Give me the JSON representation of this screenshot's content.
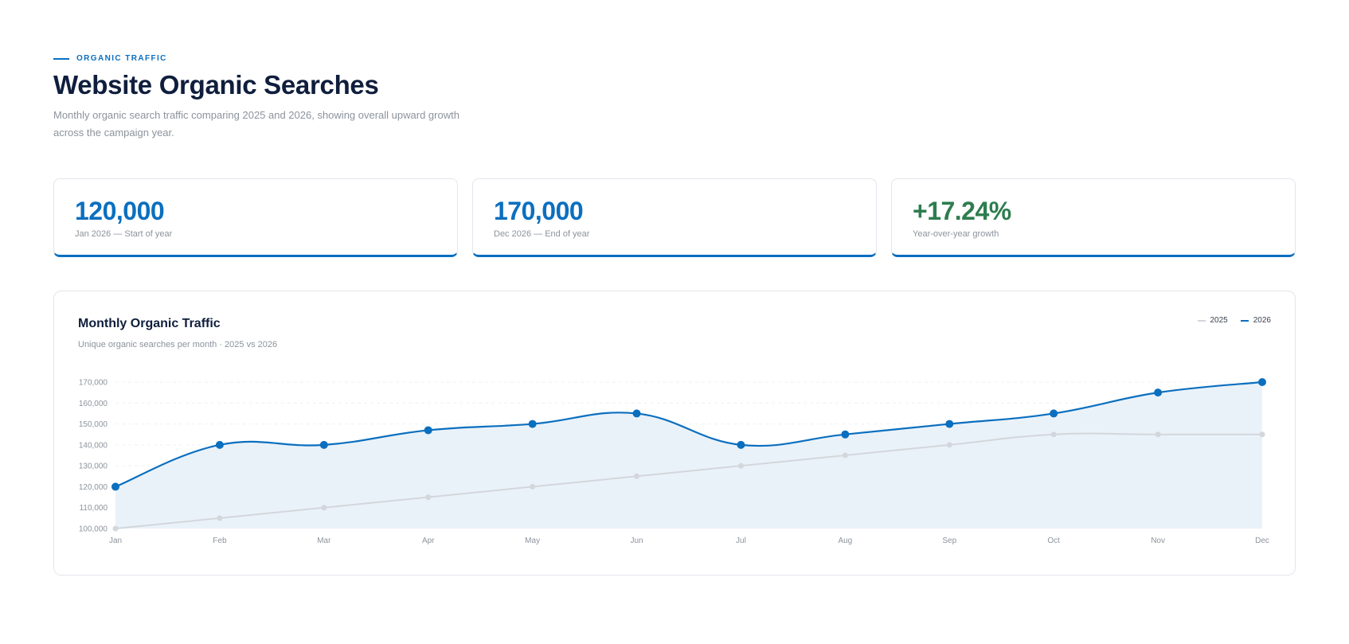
{
  "header": {
    "eyebrow": "ORGANIC TRAFFIC",
    "title": "Website Organic Searches",
    "description": "Monthly organic search traffic comparing 2025 and 2026, showing overall upward growth across the campaign year."
  },
  "kpis": [
    {
      "value": "120,000",
      "label": "Jan 2026 — Start of year",
      "color": "#0b6fbf"
    },
    {
      "value": "170,000",
      "label": "Dec 2026 — End of year",
      "color": "#0b6fbf"
    },
    {
      "value": "+17.24%",
      "label": "Year-over-year growth",
      "color": "#2e7d4f"
    }
  ],
  "colors": {
    "accent": "#0b6fbf",
    "series_2025": "#d3d7dc",
    "series_2026": "#0b6fbf",
    "area_fill": "#eaf2f9",
    "growth": "#2e7d4f",
    "title": "#0f1e3d"
  },
  "chart_data": {
    "type": "line",
    "title": "Monthly Organic Traffic",
    "subtitle": "Unique organic searches per month · 2025 vs 2026",
    "categories": [
      "Jan",
      "Feb",
      "Mar",
      "Apr",
      "May",
      "Jun",
      "Jul",
      "Aug",
      "Sep",
      "Oct",
      "Nov",
      "Dec"
    ],
    "series": [
      {
        "name": "2025",
        "values": [
          100000,
          105000,
          110000,
          115000,
          120000,
          125000,
          130000,
          135000,
          140000,
          145000,
          145000,
          145000
        ]
      },
      {
        "name": "2026",
        "values": [
          120000,
          140000,
          140000,
          147000,
          150000,
          155000,
          140000,
          145000,
          150000,
          155000,
          165000,
          170000
        ]
      }
    ],
    "ylim": [
      100000,
      170000
    ],
    "yticks": [
      "100,000",
      "110,000",
      "120,000",
      "130,000",
      "140,000",
      "150,000",
      "160,000",
      "170,000"
    ],
    "ytick_values": [
      100000,
      110000,
      120000,
      130000,
      140000,
      150000,
      160000,
      170000
    ],
    "grid": true,
    "legend": "top-right"
  }
}
